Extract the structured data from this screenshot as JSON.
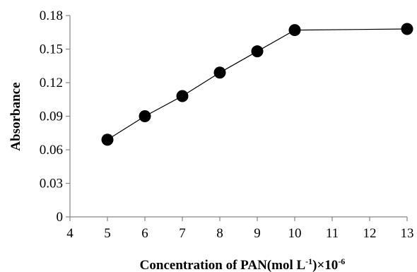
{
  "chart_data": {
    "type": "line",
    "xlabel": {
      "main": "Concentration of PAN(mol L",
      "sup1": "-1",
      "mid": ")×10",
      "sup2": "-6"
    },
    "ylabel": "Absorbance",
    "xlim": [
      4,
      13
    ],
    "ylim": [
      0,
      0.18
    ],
    "x_ticks": [
      "4",
      "5",
      "6",
      "7",
      "8",
      "9",
      "10",
      "11",
      "12",
      "13"
    ],
    "y_ticks": [
      "0",
      "0.03",
      "0.06",
      "0.09",
      "0.12",
      "0.15",
      "0.18"
    ],
    "grid": false,
    "marker": "filled-circle",
    "series": [
      {
        "x": [
          5,
          6,
          7,
          8,
          9,
          10,
          13
        ],
        "y": [
          0.069,
          0.09,
          0.108,
          0.129,
          0.148,
          0.167,
          0.168
        ]
      }
    ],
    "colors": {
      "line": "#000000",
      "marker": "#000000",
      "axis": "#868686"
    }
  }
}
